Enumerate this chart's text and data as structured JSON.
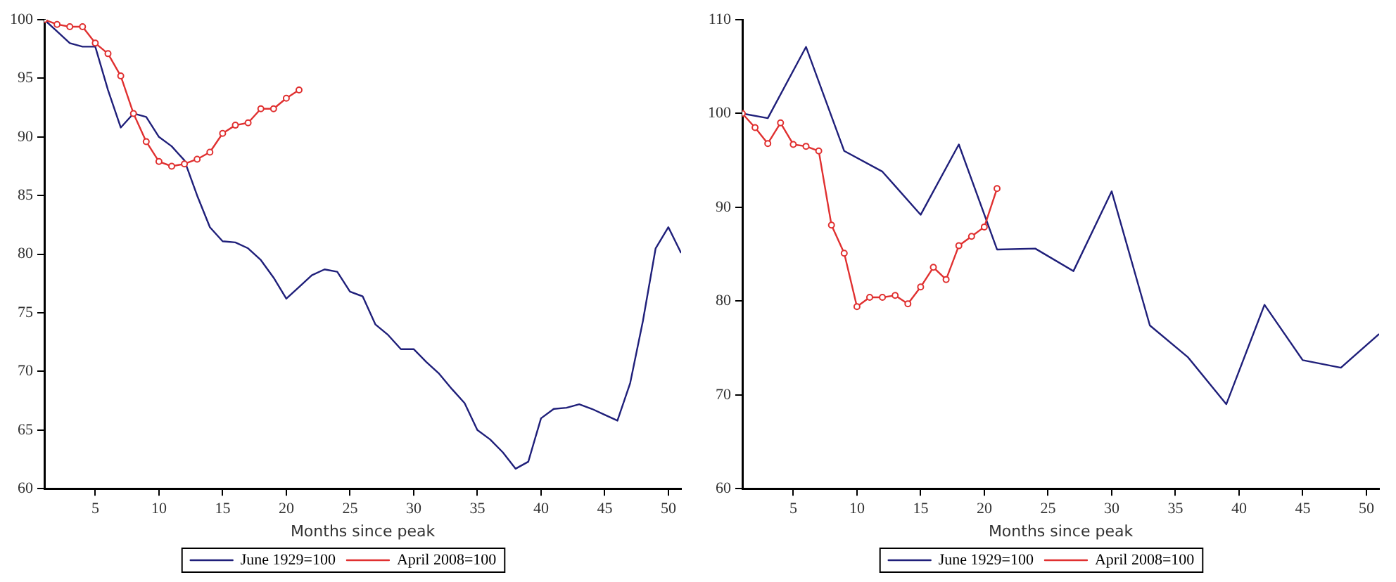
{
  "chart_data": [
    {
      "type": "line",
      "xlabel": "Months since peak",
      "xlim": [
        1,
        51
      ],
      "xticks": [
        5,
        10,
        15,
        20,
        25,
        30,
        35,
        40,
        45,
        50
      ],
      "ylim": [
        60,
        100
      ],
      "yticks": [
        60,
        65,
        70,
        75,
        80,
        85,
        90,
        95,
        100
      ],
      "grid": false,
      "legend": "bottom",
      "series": [
        {
          "name": "June 1929=100",
          "color": "#1f1f7a",
          "marker": "none",
          "x": [
            1,
            2,
            3,
            4,
            5,
            6,
            7,
            8,
            9,
            10,
            11,
            12,
            13,
            14,
            15,
            16,
            17,
            18,
            19,
            20,
            21,
            22,
            23,
            24,
            25,
            26,
            27,
            28,
            29,
            30,
            31,
            32,
            33,
            34,
            35,
            36,
            37,
            38,
            39,
            40,
            41,
            42,
            43,
            44,
            45,
            46,
            47,
            48,
            49,
            50,
            51
          ],
          "values": [
            100,
            99,
            98,
            97.7,
            97.7,
            94,
            90.8,
            92,
            91.7,
            90,
            89.2,
            88,
            85,
            82.3,
            81.1,
            81,
            80.5,
            79.5,
            78,
            76.2,
            77.2,
            78.2,
            78.7,
            78.5,
            76.8,
            76.4,
            74,
            73.1,
            71.9,
            71.9,
            70.8,
            69.8,
            68.5,
            67.3,
            65,
            64.2,
            63.1,
            61.7,
            62.3,
            66,
            66.8,
            66.9,
            67.2,
            66.8,
            66.3,
            65.8,
            69,
            74.3,
            80.5,
            82.3,
            80.1
          ]
        },
        {
          "name": "April 2008=100",
          "color": "#e03030",
          "marker": "circle",
          "x": [
            1,
            2,
            3,
            4,
            5,
            6,
            7,
            8,
            9,
            10,
            11,
            12,
            13,
            14,
            15,
            16,
            17,
            18,
            19,
            20,
            21
          ],
          "values": [
            100,
            99.6,
            99.4,
            99.4,
            98,
            97.1,
            95.2,
            92,
            89.6,
            87.9,
            87.5,
            87.7,
            88.1,
            88.7,
            90.3,
            91,
            91.2,
            92.4,
            92.4,
            93.3,
            94
          ]
        }
      ]
    },
    {
      "type": "line",
      "xlabel": "Months since peak",
      "xlim": [
        1,
        51
      ],
      "xticks": [
        5,
        10,
        15,
        20,
        25,
        30,
        35,
        40,
        45,
        50
      ],
      "ylim": [
        60,
        110
      ],
      "yticks": [
        60,
        70,
        80,
        90,
        100,
        110
      ],
      "grid": false,
      "legend": "bottom",
      "series": [
        {
          "name": "June 1929=100",
          "color": "#1f1f7a",
          "marker": "none",
          "x": [
            1,
            3,
            6,
            9,
            12,
            15,
            18,
            21,
            24,
            27,
            30,
            33,
            36,
            39,
            42,
            45,
            48,
            51
          ],
          "values": [
            100,
            99.5,
            107.1,
            96,
            93.8,
            89.2,
            96.7,
            85.5,
            85.6,
            83.2,
            91.7,
            77.4,
            74,
            69,
            79.6,
            73.7,
            72.9,
            76.5
          ]
        },
        {
          "name": "April 2008=100",
          "color": "#e03030",
          "marker": "circle",
          "x": [
            1,
            2,
            3,
            4,
            5,
            6,
            7,
            8,
            9,
            10,
            11,
            12,
            13,
            14,
            15,
            16,
            17,
            18,
            19,
            20,
            21
          ],
          "values": [
            100,
            98.5,
            96.8,
            99,
            96.7,
            96.5,
            96,
            88.1,
            85.1,
            79.4,
            80.4,
            80.4,
            80.6,
            79.7,
            81.5,
            83.6,
            82.3,
            85.9,
            86.9,
            87.9,
            92
          ]
        }
      ]
    }
  ]
}
